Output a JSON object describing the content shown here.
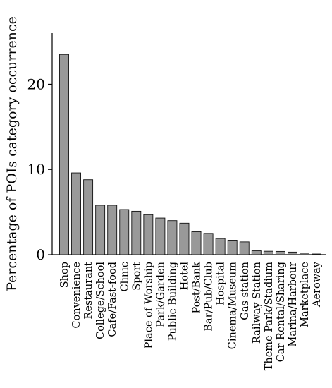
{
  "chart_data": {
    "type": "bar",
    "ylabel": "Percentage of POIs category occurrence",
    "xlabel": "",
    "ylim": [
      0,
      26
    ],
    "yticks": [
      0,
      10,
      20
    ],
    "grid": false,
    "categories": [
      "Shop",
      "Convenience",
      "Restaurant",
      "College/School",
      "Cafe/Fast-food",
      "Clinic",
      "Sport",
      "Place of Worship",
      "Park/Garden",
      "Public Building",
      "Hotel",
      "Post/Bank",
      "Bar/Pub/Club",
      "Hospital",
      "Cinema/Museum",
      "Gas station",
      "Railway Station",
      "Theme Park/Stadium",
      "Car Rental/Sharing",
      "Marina/Harbour",
      "Marketplace",
      "Aeroway"
    ],
    "values": [
      23.5,
      9.6,
      8.8,
      5.8,
      5.8,
      5.3,
      5.1,
      4.7,
      4.3,
      4.0,
      3.7,
      2.7,
      2.5,
      1.9,
      1.7,
      1.5,
      0.45,
      0.4,
      0.38,
      0.3,
      0.18,
      0.08
    ],
    "colors": {
      "bar_fill": "#999999",
      "bar_stroke": "#111111"
    }
  }
}
